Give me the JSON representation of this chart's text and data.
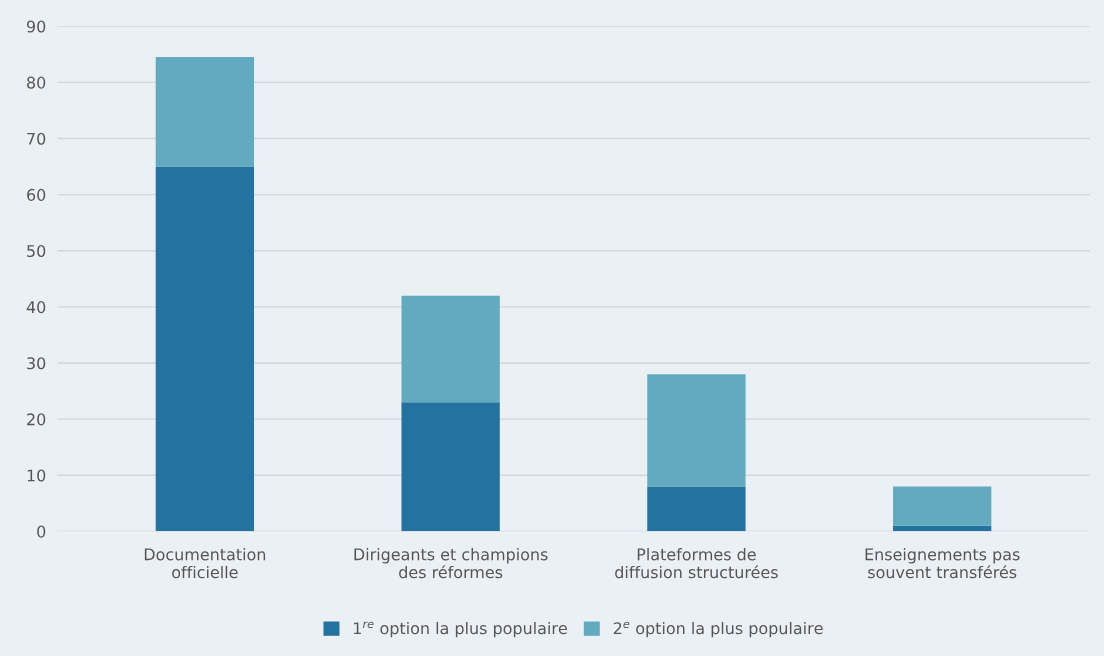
{
  "chart_data": {
    "type": "bar",
    "stacked": true,
    "categories": [
      "Documentation\nofficielle",
      "Dirigeants et champions\ndes réformes",
      "Plateformes de\ndiffusion structurées",
      "Enseignements pas\nsouvent transférés"
    ],
    "series": [
      {
        "name": "1$^{re}$ option la plus populaire",
        "color": "#23729f",
        "values": [
          65,
          23,
          8,
          1
        ]
      },
      {
        "name": "2$^{e}$ option la plus populaire",
        "color": "#61aac0",
        "values": [
          19.5,
          19,
          20,
          7
        ]
      }
    ],
    "ylim": [
      0,
      90
    ],
    "yticks": [
      0,
      10,
      20,
      30,
      40,
      50,
      60,
      70,
      80,
      90
    ],
    "grid": "y",
    "legend": "bottom"
  }
}
